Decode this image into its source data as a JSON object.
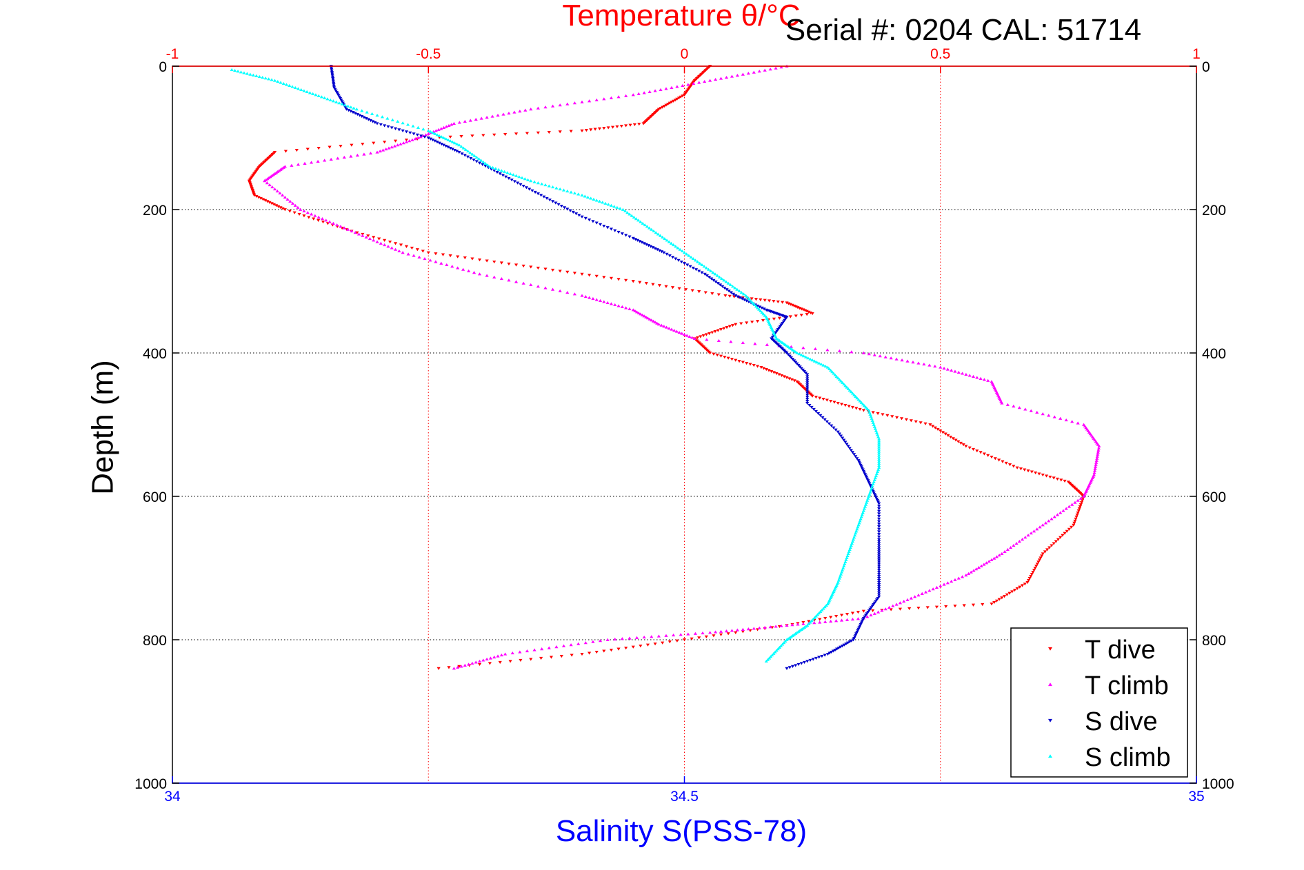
{
  "chart_data": {
    "type": "scatter",
    "title": "Temperature θ/°C",
    "subtitle": "Serial #: 0204  CAL: 51714",
    "xlabel": "Salinity S(PSS-78)",
    "x2label": "Temperature θ/°C",
    "ylabel": "Depth (m)",
    "xlim": [
      34,
      35
    ],
    "x2lim": [
      -1,
      1
    ],
    "ylim": [
      0,
      1000
    ],
    "y_reversed": true,
    "grid": true,
    "legend_position": "bottom-right",
    "xticks": [
      {
        "v": 34,
        "label": "34"
      },
      {
        "v": 34.5,
        "label": "34.5"
      },
      {
        "v": 35,
        "label": "35"
      }
    ],
    "x2ticks": [
      {
        "v": -1,
        "label": "-1"
      },
      {
        "v": -0.5,
        "label": "-0.5"
      },
      {
        "v": 0,
        "label": "0"
      },
      {
        "v": 0.5,
        "label": "0.5"
      },
      {
        "v": 1,
        "label": "1"
      }
    ],
    "yticks": [
      {
        "v": 0,
        "label": "0"
      },
      {
        "v": 200,
        "label": "200"
      },
      {
        "v": 400,
        "label": "400"
      },
      {
        "v": 600,
        "label": "600"
      },
      {
        "v": 800,
        "label": "800"
      },
      {
        "v": 1000,
        "label": "1000"
      }
    ],
    "colors": {
      "temperature_axis": "#ff0000",
      "salinity_axis": "#0000ff",
      "grid_temperature": "#ff0000",
      "grid_depth": "#000000"
    },
    "series": [
      {
        "name": "T dive",
        "axis": "temperature",
        "color": "#ff0000",
        "marker": "triangle-down",
        "points": [
          [
            0.05,
            0
          ],
          [
            0.02,
            20
          ],
          [
            0,
            40
          ],
          [
            -0.05,
            60
          ],
          [
            -0.08,
            80
          ],
          [
            -0.2,
            90
          ],
          [
            -0.5,
            100
          ],
          [
            -0.8,
            120
          ],
          [
            -0.83,
            140
          ],
          [
            -0.85,
            160
          ],
          [
            -0.84,
            180
          ],
          [
            -0.78,
            200
          ],
          [
            -0.65,
            230
          ],
          [
            -0.5,
            260
          ],
          [
            -0.3,
            280
          ],
          [
            -0.1,
            300
          ],
          [
            0.08,
            320
          ],
          [
            0.2,
            330
          ],
          [
            0.25,
            345
          ],
          [
            0.1,
            360
          ],
          [
            0.02,
            380
          ],
          [
            0.05,
            400
          ],
          [
            0.15,
            420
          ],
          [
            0.22,
            440
          ],
          [
            0.25,
            460
          ],
          [
            0.35,
            480
          ],
          [
            0.48,
            500
          ],
          [
            0.55,
            530
          ],
          [
            0.65,
            560
          ],
          [
            0.75,
            580
          ],
          [
            0.78,
            600
          ],
          [
            0.76,
            640
          ],
          [
            0.7,
            680
          ],
          [
            0.67,
            720
          ],
          [
            0.6,
            750
          ],
          [
            0.35,
            760
          ],
          [
            0.2,
            780
          ],
          [
            0,
            800
          ],
          [
            -0.2,
            820
          ],
          [
            -0.48,
            840
          ]
        ]
      },
      {
        "name": "T climb",
        "axis": "temperature",
        "color": "#ff00ff",
        "marker": "triangle-up",
        "points": [
          [
            -0.45,
            840
          ],
          [
            -0.35,
            820
          ],
          [
            -0.15,
            800
          ],
          [
            0.05,
            790
          ],
          [
            0.2,
            780
          ],
          [
            0.35,
            770
          ],
          [
            0.45,
            740
          ],
          [
            0.55,
            710
          ],
          [
            0.62,
            680
          ],
          [
            0.7,
            640
          ],
          [
            0.78,
            600
          ],
          [
            0.8,
            570
          ],
          [
            0.81,
            530
          ],
          [
            0.78,
            500
          ],
          [
            0.62,
            470
          ],
          [
            0.6,
            440
          ],
          [
            0.5,
            420
          ],
          [
            0.35,
            400
          ],
          [
            0.02,
            380
          ],
          [
            -0.05,
            360
          ],
          [
            -0.1,
            340
          ],
          [
            -0.2,
            320
          ],
          [
            -0.4,
            290
          ],
          [
            -0.55,
            260
          ],
          [
            -0.65,
            230
          ],
          [
            -0.75,
            200
          ],
          [
            -0.82,
            160
          ],
          [
            -0.78,
            140
          ],
          [
            -0.6,
            120
          ],
          [
            -0.52,
            100
          ],
          [
            -0.45,
            80
          ],
          [
            -0.3,
            60
          ],
          [
            -0.1,
            40
          ],
          [
            0.05,
            20
          ],
          [
            0.2,
            0
          ]
        ]
      },
      {
        "name": "S dive",
        "axis": "salinity",
        "color": "#0000cc",
        "marker": "triangle-down",
        "points": [
          [
            34.155,
            0
          ],
          [
            34.158,
            30
          ],
          [
            34.17,
            60
          ],
          [
            34.2,
            80
          ],
          [
            34.25,
            100
          ],
          [
            34.28,
            120
          ],
          [
            34.32,
            150
          ],
          [
            34.36,
            180
          ],
          [
            34.4,
            210
          ],
          [
            34.45,
            240
          ],
          [
            34.48,
            260
          ],
          [
            34.52,
            290
          ],
          [
            34.55,
            320
          ],
          [
            34.58,
            340
          ],
          [
            34.6,
            350
          ],
          [
            34.585,
            380
          ],
          [
            34.6,
            400
          ],
          [
            34.62,
            430
          ],
          [
            34.62,
            470
          ],
          [
            34.65,
            510
          ],
          [
            34.67,
            550
          ],
          [
            34.68,
            580
          ],
          [
            34.69,
            610
          ],
          [
            34.69,
            660
          ],
          [
            34.69,
            700
          ],
          [
            34.69,
            740
          ],
          [
            34.675,
            770
          ],
          [
            34.665,
            800
          ],
          [
            34.64,
            820
          ],
          [
            34.6,
            840
          ]
        ]
      },
      {
        "name": "S climb",
        "axis": "salinity",
        "color": "#00ffff",
        "marker": "triangle-up",
        "points": [
          [
            34.058,
            5
          ],
          [
            34.1,
            20
          ],
          [
            34.14,
            40
          ],
          [
            34.18,
            60
          ],
          [
            34.25,
            90
          ],
          [
            34.28,
            110
          ],
          [
            34.31,
            140
          ],
          [
            34.35,
            160
          ],
          [
            34.4,
            180
          ],
          [
            34.44,
            200
          ],
          [
            34.47,
            230
          ],
          [
            34.5,
            260
          ],
          [
            34.53,
            290
          ],
          [
            34.56,
            320
          ],
          [
            34.58,
            350
          ],
          [
            34.59,
            380
          ],
          [
            34.61,
            400
          ],
          [
            34.64,
            420
          ],
          [
            34.66,
            450
          ],
          [
            34.68,
            480
          ],
          [
            34.69,
            520
          ],
          [
            34.69,
            560
          ],
          [
            34.68,
            600
          ],
          [
            34.67,
            640
          ],
          [
            34.66,
            680
          ],
          [
            34.65,
            720
          ],
          [
            34.64,
            750
          ],
          [
            34.62,
            780
          ],
          [
            34.6,
            800
          ],
          [
            34.58,
            830
          ]
        ]
      }
    ]
  }
}
